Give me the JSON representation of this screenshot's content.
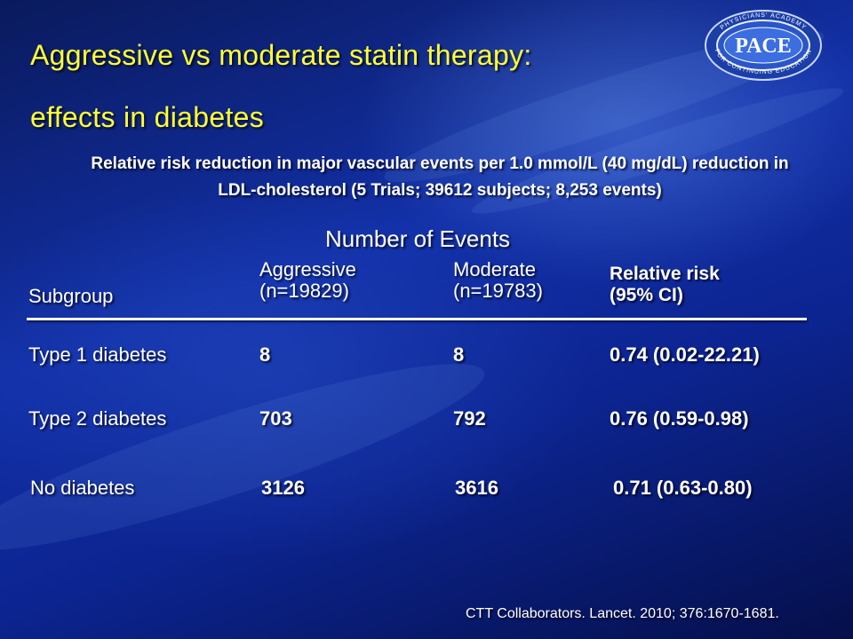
{
  "slide": {
    "title_line1": "Aggressive vs moderate statin therapy:",
    "title_line2": "effects in diabetes",
    "subtitle_line1": "Relative risk reduction in major vascular events per 1.0 mmol/L (40 mg/dL) reduction in",
    "subtitle_line2": "LDL-cholesterol (5 Trials; 39612 subjects; 8,253 events)",
    "title_color": "#ffff33",
    "background_color": "#1230a8"
  },
  "logo": {
    "name": "PACE",
    "ring_text": "PHYSICIANS' ACADEMY FOR CONTINUING EDUCATION"
  },
  "table": {
    "group_header": "Number of Events",
    "headers": {
      "subgroup": "Subgroup",
      "aggressive": "Aggressive",
      "aggressive_n": "(n=19829)",
      "moderate": "Moderate",
      "moderate_n": "(n=19783)",
      "relative_risk": "Relative risk",
      "relative_risk_ci": "(95% CI)"
    },
    "rows": [
      {
        "subgroup": "Type 1 diabetes",
        "aggressive": "8",
        "moderate": "8",
        "relative_risk": "0.74 (0.02-22.21)"
      },
      {
        "subgroup": "Type 2 diabetes",
        "aggressive": "703",
        "moderate": "792",
        "relative_risk": "0.76 (0.59-0.98)"
      },
      {
        "subgroup": "No diabetes",
        "aggressive": "3126",
        "moderate": "3616",
        "relative_risk": "0.71 (0.63-0.80)"
      }
    ]
  },
  "footnote": "CTT Collaborators. Lancet. 2010; 376:1670-1681."
}
